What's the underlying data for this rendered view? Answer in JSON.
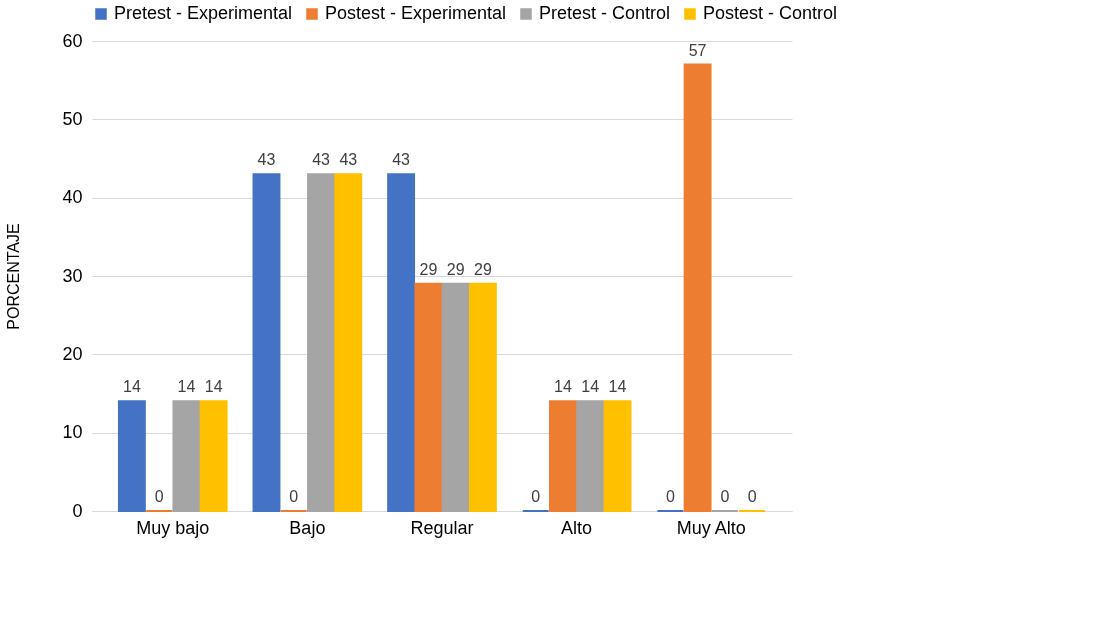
{
  "chart_data": {
    "type": "bar",
    "ylabel": "PORCENTAJE",
    "categories": [
      "Muy bajo",
      "Bajo",
      "Regular",
      "Alto",
      "Muy Alto"
    ],
    "series": [
      {
        "name": "Pretest - Experimental",
        "color": "#4472c4",
        "values": [
          14,
          43,
          43,
          0,
          0
        ]
      },
      {
        "name": "Postest - Experimental",
        "color": "#ed7d31",
        "values": [
          0,
          0,
          29,
          14,
          57
        ]
      },
      {
        "name": "Pretest - Control",
        "color": "#a5a5a5",
        "values": [
          14,
          43,
          29,
          14,
          0
        ]
      },
      {
        "name": "Postest - Control",
        "color": "#ffc000",
        "values": [
          14,
          43,
          29,
          14,
          0
        ]
      }
    ],
    "ylim": [
      0,
      60
    ],
    "yticks": [
      0,
      10,
      20,
      30,
      40,
      50,
      60
    ],
    "grid": "y",
    "legend": "top",
    "data_labels": true
  }
}
